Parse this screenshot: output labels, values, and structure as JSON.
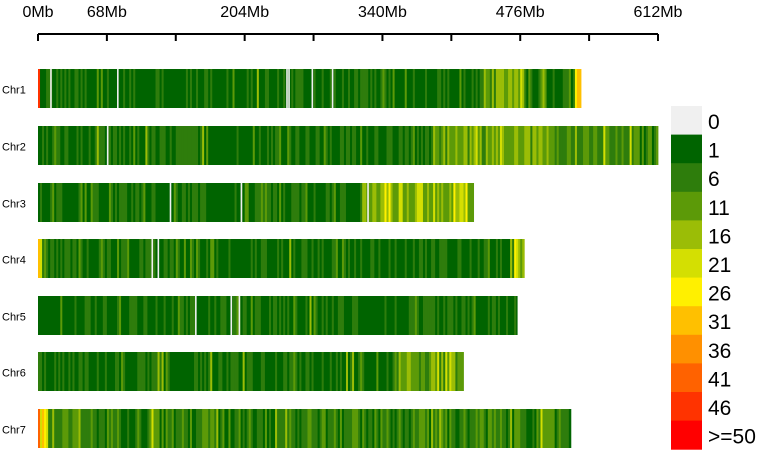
{
  "chart_data": {
    "type": "heatmap",
    "title": "",
    "xlabel": "",
    "ylabel": "",
    "x_unit": "Mb",
    "xlim": [
      0,
      612
    ],
    "x_ticks": [
      0,
      68,
      136,
      204,
      272,
      340,
      408,
      476,
      544,
      612
    ],
    "x_tick_labels": [
      "0Mb",
      "68Mb",
      "204Mb",
      "340Mb",
      "476Mb",
      "612Mb"
    ],
    "x_labeled_ticks": [
      0,
      68,
      204,
      340,
      476,
      612
    ],
    "chromosomes": [
      {
        "name": "Chr1",
        "length_mb": 536,
        "zones": [
          {
            "start": 0,
            "end": 2,
            "level": 46
          },
          {
            "start": 2,
            "end": 440,
            "level": 4
          },
          {
            "start": 440,
            "end": 480,
            "level": 14
          },
          {
            "start": 480,
            "end": 530,
            "level": 6
          },
          {
            "start": 530,
            "end": 536,
            "level": 31
          }
        ],
        "gaps": [
          12,
          78,
          245,
          247,
          270,
          290
        ]
      },
      {
        "name": "Chr2",
        "length_mb": 612,
        "zones": [
          {
            "start": 0,
            "end": 390,
            "level": 5
          },
          {
            "start": 390,
            "end": 520,
            "level": 15
          },
          {
            "start": 520,
            "end": 612,
            "level": 10
          }
        ],
        "gaps": [
          68
        ]
      },
      {
        "name": "Chr3",
        "length_mb": 430,
        "zones": [
          {
            "start": 0,
            "end": 320,
            "level": 4
          },
          {
            "start": 320,
            "end": 430,
            "level": 17
          }
        ],
        "gaps": [
          130,
          200,
          325
        ]
      },
      {
        "name": "Chr4",
        "length_mb": 480,
        "zones": [
          {
            "start": 0,
            "end": 4,
            "level": 26
          },
          {
            "start": 4,
            "end": 470,
            "level": 5
          },
          {
            "start": 470,
            "end": 480,
            "level": 18
          }
        ],
        "gaps": [
          112,
          118
        ]
      },
      {
        "name": "Chr5",
        "length_mb": 473,
        "zones": [
          {
            "start": 0,
            "end": 473,
            "level": 4
          }
        ],
        "gaps": [
          155,
          190,
          198
        ]
      },
      {
        "name": "Chr6",
        "length_mb": 420,
        "zones": [
          {
            "start": 0,
            "end": 350,
            "level": 5
          },
          {
            "start": 350,
            "end": 420,
            "level": 14
          }
        ],
        "gaps": []
      },
      {
        "name": "Chr7",
        "length_mb": 526,
        "zones": [
          {
            "start": 0,
            "end": 2,
            "level": 46
          },
          {
            "start": 2,
            "end": 10,
            "level": 26
          },
          {
            "start": 10,
            "end": 526,
            "level": 9
          }
        ],
        "gaps": []
      }
    ],
    "legend": {
      "placement": "right",
      "entries": [
        {
          "label": "0",
          "color": "#f0f0f0"
        },
        {
          "label": "1",
          "color": "#006400"
        },
        {
          "label": "6",
          "color": "#2e7d0c"
        },
        {
          "label": "11",
          "color": "#5c9a08"
        },
        {
          "label": "16",
          "color": "#9bbd06"
        },
        {
          "label": "21",
          "color": "#d4df02"
        },
        {
          "label": "26",
          "color": "#fff000"
        },
        {
          "label": "31",
          "color": "#ffc000"
        },
        {
          "label": "36",
          "color": "#ff9000"
        },
        {
          "label": "41",
          "color": "#ff6200"
        },
        {
          "label": "46",
          "color": "#ff3300"
        },
        {
          "label": ">=50",
          "color": "#ff0000"
        }
      ]
    }
  }
}
